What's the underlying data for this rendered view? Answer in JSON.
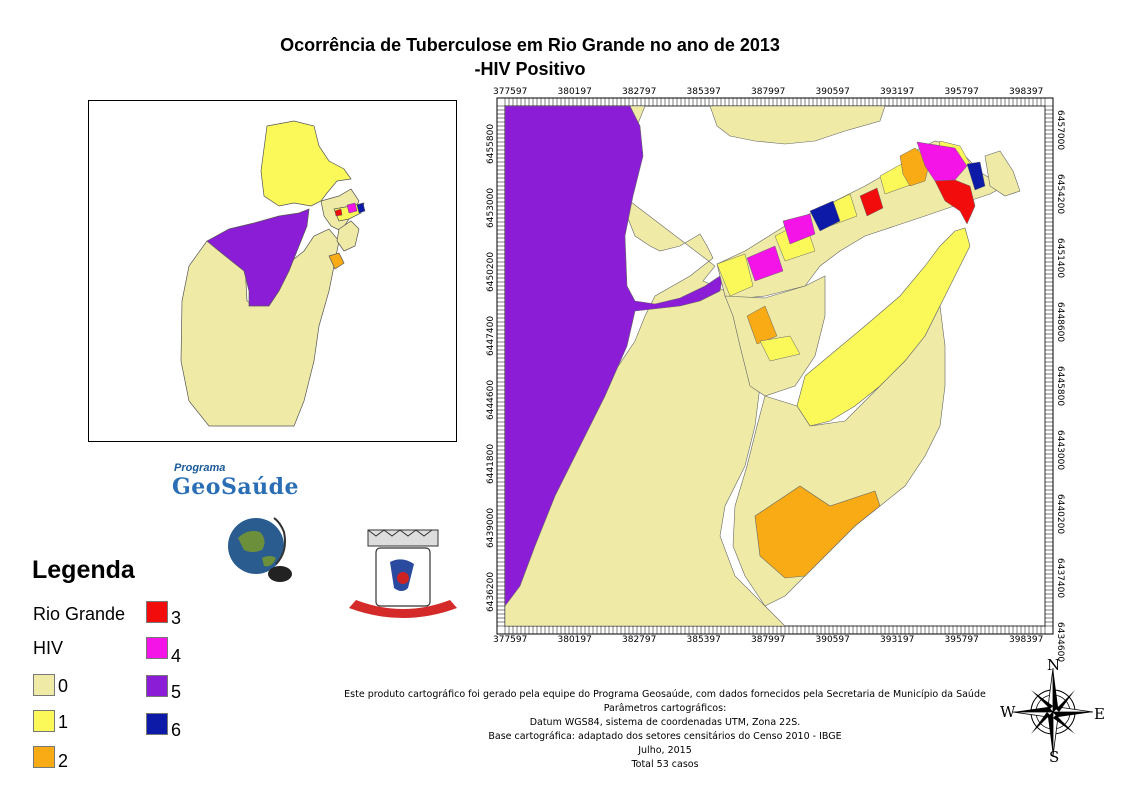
{
  "title": {
    "line1": "Ocorrência de Tuberculose em Rio Grande no ano de 2013",
    "line2": "-HIV Positivo"
  },
  "map_frame": {
    "x_ticks": [
      "377597",
      "380197",
      "382797",
      "385397",
      "387997",
      "390597",
      "393197",
      "395797",
      "398397"
    ],
    "y_ticks_left": [
      "6455800",
      "6453000",
      "6450200",
      "6447400",
      "6444600",
      "6441800",
      "6439000",
      "6436200"
    ],
    "y_ticks_right": [
      "6457000",
      "6454200",
      "6451400",
      "6448600",
      "6445800",
      "6443000",
      "6440200",
      "6437400",
      "6434600"
    ]
  },
  "legend": {
    "title": "Legenda",
    "layer": "Rio Grande",
    "field": "HIV",
    "classes": [
      {
        "label": "0",
        "color": "#efeba7"
      },
      {
        "label": "1",
        "color": "#fbf95a"
      },
      {
        "label": "2",
        "color": "#f8ab14"
      },
      {
        "label": "3",
        "color": "#f20c0c"
      },
      {
        "label": "4",
        "color": "#f514e8"
      },
      {
        "label": "5",
        "color": "#8c1dd6"
      },
      {
        "label": "6",
        "color": "#0d1aa8"
      }
    ]
  },
  "logos": {
    "geosaude_program": "Programa",
    "geosaude_name": "GeoSaúde",
    "globe_icon": "globe-mouse-icon",
    "crest_icon": "rio-grande-coat-of-arms-icon"
  },
  "credits": {
    "line1": "Este produto cartográfico foi gerado pela equipe do Programa Geosaúde, com dados fornecidos pela Secretaria de Município da Saúde",
    "line2": "Parâmetros cartográficos:",
    "line3": "Datum WGS84, sistema de coordenadas UTM, Zona 22S.",
    "line4": "Base cartográfica: adaptado dos setores censitários do Censo 2010 - IBGE",
    "line5": "Julho, 2015",
    "line6": "Total 53 casos"
  },
  "compass": {
    "n": "N",
    "s": "S",
    "e": "E",
    "w": "W"
  }
}
